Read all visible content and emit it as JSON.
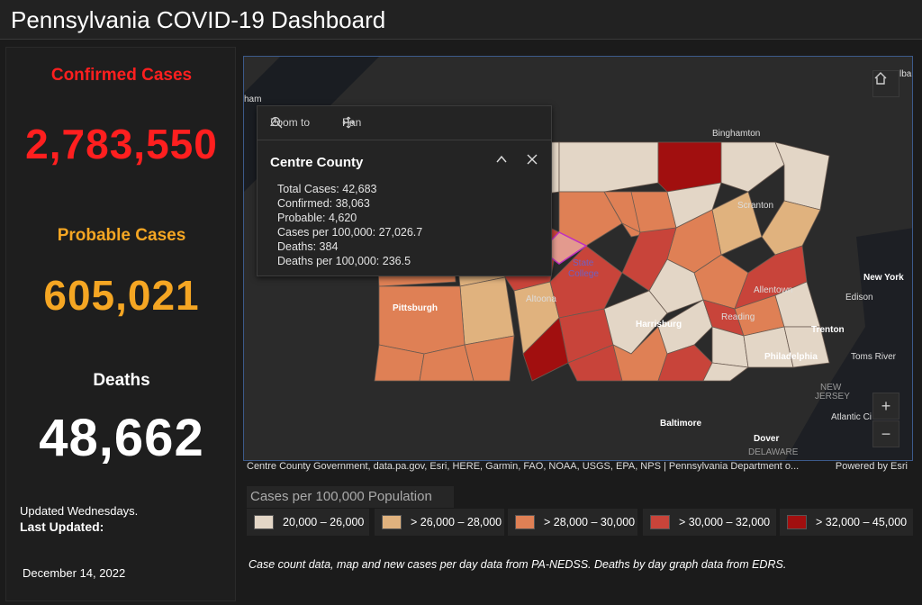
{
  "header": {
    "title": "Pennsylvania COVID-19 Dashboard"
  },
  "stats": {
    "confirmed_label": "Confirmed Cases",
    "confirmed_value": "2,783,550",
    "probable_label": "Probable Cases",
    "probable_value": "605,021",
    "deaths_label": "Deaths",
    "deaths_value": "48,662",
    "updated_line": "Updated Wednesdays.",
    "last_updated_label": "Last Updated:",
    "last_updated_date": "December 14, 2022"
  },
  "colors": {
    "confirmed": "#ff1f1f",
    "probable": "#f5a623",
    "deaths": "#ffffff"
  },
  "popup": {
    "zoom_label": "Zoom to",
    "pan_label": "Pan",
    "title": "Centre County",
    "lines": [
      "Total Cases: 42,683",
      "Confirmed: 38,063",
      "Probable: 4,620",
      "Cases per 100,000: 27,026.7",
      "Deaths: 384",
      "Deaths per 100,000: 236.5"
    ]
  },
  "map": {
    "labels": {
      "binghamton": "Binghamton",
      "scranton": "Scranton",
      "state_college_1": "State",
      "state_college_2": "College",
      "pittsburgh": "Pittsburgh",
      "altoona": "Altoona",
      "harrisburg": "Harrisburg",
      "reading": "Reading",
      "allentown": "Allentown",
      "philadelphia": "Philadelphia",
      "new_york": "New York",
      "edison": "Edison",
      "trenton": "Trenton",
      "toms_river": "Toms River",
      "new_jersey_1": "NEW",
      "new_jersey_2": "JERSEY",
      "atlantic_city": "Atlantic Ci",
      "baltimore": "Baltimore",
      "dover": "Dover",
      "delaware": "DELAWARE",
      "edge_left": "ham",
      "edge_right": "lba"
    },
    "controls": {
      "home_icon": "home-icon",
      "zoom_in": "+",
      "zoom_out": "−"
    }
  },
  "attribution": {
    "sources": "Centre County Government, data.pa.gov, Esri, HERE, Garmin, FAO, NOAA, USGS, EPA, NPS | Pennsylvania Department o...",
    "powered": "Powered by Esri"
  },
  "legend": {
    "title": "Cases per 100,000 Population",
    "items": [
      {
        "label": "20,000 – 26,000",
        "color": "#e3d6c6"
      },
      {
        "label": "> 26,000 – 28,000",
        "color": "#e0b27e"
      },
      {
        "label": "> 28,000 – 30,000",
        "color": "#df8055"
      },
      {
        "label": "> 30,000 – 32,000",
        "color": "#c8443a"
      },
      {
        "label": "> 32,000 – 45,000",
        "color": "#a10f0f"
      }
    ]
  },
  "footnote": "Case count data, map and new cases per day data from PA-NEDSS.  Deaths by day graph data from EDRS."
}
